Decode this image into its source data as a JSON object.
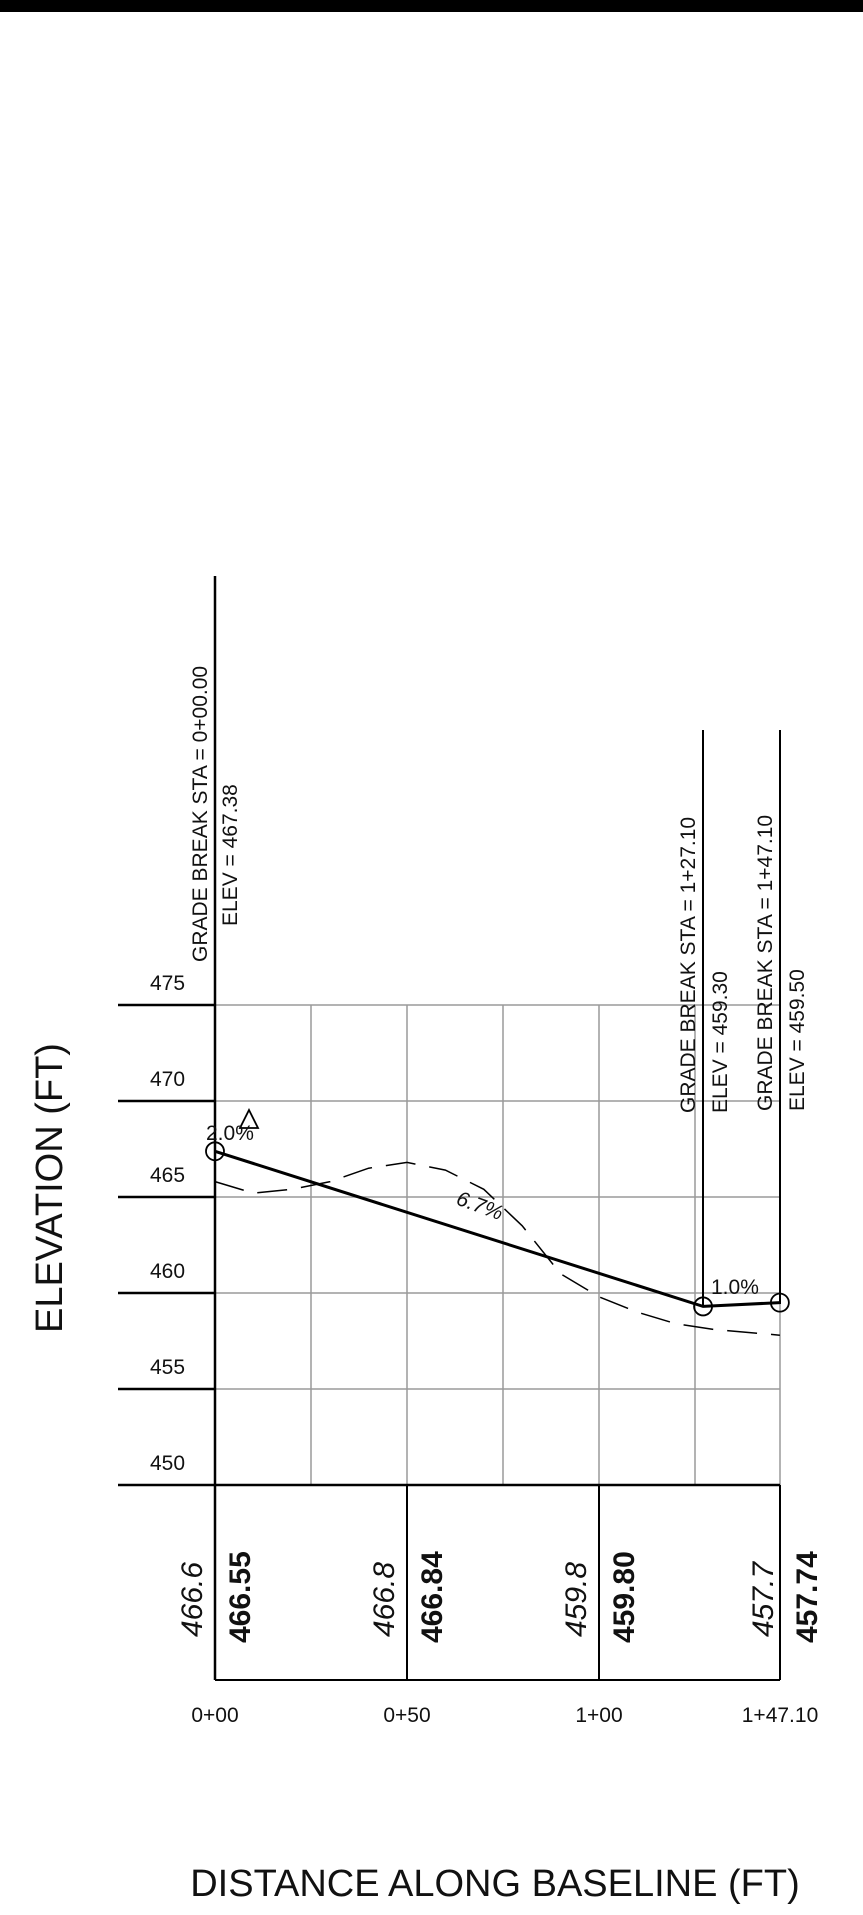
{
  "profile": {
    "y_axis": {
      "title": "ELEVATION (FT)",
      "ticks": [
        "475",
        "470",
        "465",
        "460",
        "455",
        "450"
      ],
      "range": [
        450,
        475
      ]
    },
    "x_axis": {
      "title": "DISTANCE ALONG BASELINE (FT)",
      "ticks": [
        "0+00",
        "0+50",
        "1+00",
        "1+47.10"
      ],
      "range_ft": [
        0,
        147.1
      ]
    },
    "grade_breaks": [
      {
        "station_label": "GRADE BREAK STA = 0+00.00",
        "elev_label": "ELEV = 467.38",
        "station_ft": 0,
        "elev": 467.38
      },
      {
        "station_label": "GRADE BREAK STA = 1+27.10",
        "elev_label": "ELEV = 459.30",
        "station_ft": 127.1,
        "elev": 459.3
      },
      {
        "station_label": "GRADE BREAK STA = 1+47.10",
        "elev_label": "ELEV = 459.50",
        "station_ft": 147.1,
        "elev": 459.5
      }
    ],
    "slopes": [
      {
        "label": "2.0%",
        "italic": false
      },
      {
        "label": "6.7%",
        "italic": true
      },
      {
        "label": "1.0%",
        "italic": false
      }
    ],
    "existing_ground": [
      [
        0,
        465.8
      ],
      [
        10,
        465.2
      ],
      [
        20,
        465.4
      ],
      [
        30,
        465.8
      ],
      [
        40,
        466.5
      ],
      [
        50,
        466.8
      ],
      [
        60,
        466.4
      ],
      [
        70,
        465.4
      ],
      [
        80,
        463.5
      ],
      [
        90,
        461.0
      ],
      [
        100,
        459.8
      ],
      [
        110,
        459.0
      ],
      [
        120,
        458.4
      ],
      [
        130,
        458.1
      ],
      [
        147.1,
        457.8
      ]
    ],
    "elevation_table": [
      {
        "existing": "466.6",
        "proposed": "466.55"
      },
      {
        "existing": "466.8",
        "proposed": "466.84"
      },
      {
        "existing": "459.8",
        "proposed": "459.80"
      },
      {
        "existing": "457.7",
        "proposed": "457.74"
      }
    ]
  }
}
